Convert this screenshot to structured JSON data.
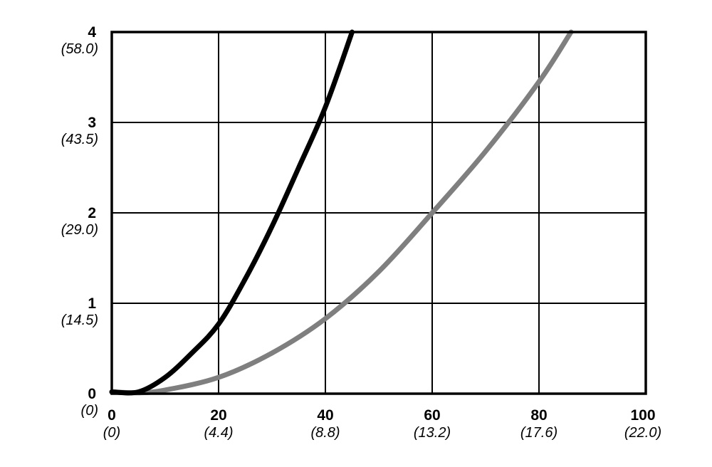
{
  "chart_data": {
    "type": "line",
    "xlim": [
      0,
      100
    ],
    "ylim": [
      0,
      4
    ],
    "grid": true,
    "x_ticks": [
      {
        "value": 0,
        "label": "0",
        "sub": "(0)"
      },
      {
        "value": 20,
        "label": "20",
        "sub": "(4.4)"
      },
      {
        "value": 40,
        "label": "40",
        "sub": "(8.8)"
      },
      {
        "value": 60,
        "label": "60",
        "sub": "(13.2)"
      },
      {
        "value": 80,
        "label": "80",
        "sub": "(17.6)"
      },
      {
        "value": 100,
        "label": "100",
        "sub": "(22.0)"
      }
    ],
    "y_ticks": [
      {
        "value": 0,
        "label": "0",
        "sub": "(0)"
      },
      {
        "value": 1,
        "label": "1",
        "sub": "(14.5)"
      },
      {
        "value": 2,
        "label": "2",
        "sub": "(29.0)"
      },
      {
        "value": 3,
        "label": "3",
        "sub": "(43.5)"
      },
      {
        "value": 4,
        "label": "4",
        "sub": "(58.0)"
      }
    ],
    "series": [
      {
        "color": "#000000",
        "points": [
          {
            "x": 0,
            "y": 0.02
          },
          {
            "x": 5,
            "y": 0.02
          },
          {
            "x": 10,
            "y": 0.18
          },
          {
            "x": 15,
            "y": 0.45
          },
          {
            "x": 20,
            "y": 0.77
          },
          {
            "x": 25,
            "y": 1.27
          },
          {
            "x": 30,
            "y": 1.85
          },
          {
            "x": 35,
            "y": 2.5
          },
          {
            "x": 40,
            "y": 3.17
          },
          {
            "x": 45,
            "y": 4.0
          }
        ]
      },
      {
        "color": "#7f7f7f",
        "points": [
          {
            "x": 0,
            "y": 0.02
          },
          {
            "x": 5,
            "y": 0.01
          },
          {
            "x": 10,
            "y": 0.04
          },
          {
            "x": 20,
            "y": 0.18
          },
          {
            "x": 30,
            "y": 0.45
          },
          {
            "x": 40,
            "y": 0.83
          },
          {
            "x": 50,
            "y": 1.35
          },
          {
            "x": 60,
            "y": 2.0
          },
          {
            "x": 70,
            "y": 2.68
          },
          {
            "x": 80,
            "y": 3.45
          },
          {
            "x": 86,
            "y": 4.0
          }
        ]
      }
    ]
  }
}
